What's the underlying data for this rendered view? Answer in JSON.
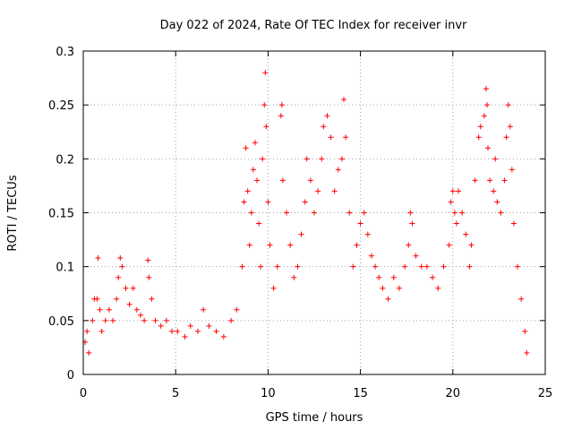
{
  "chart_data": {
    "type": "scatter",
    "title": "Day 022 of 2024, Rate Of TEC Index for receiver invr",
    "xlabel": "GPS time / hours",
    "ylabel": "ROTI / TECUs",
    "xlim": [
      0,
      25
    ],
    "ylim": [
      0,
      0.3
    ],
    "xticks": [
      "0",
      "5",
      "10",
      "15",
      "20",
      "25"
    ],
    "yticks": [
      "0",
      "0.05",
      "0.1",
      "0.15",
      "0.2",
      "0.25",
      "0.3"
    ],
    "grid": true,
    "marker": "plus",
    "color": "#ff0000",
    "series": [
      {
        "name": "ROTI",
        "points": [
          [
            0.1,
            0.03
          ],
          [
            0.2,
            0.04
          ],
          [
            0.3,
            0.02
          ],
          [
            0.5,
            0.05
          ],
          [
            0.6,
            0.07
          ],
          [
            0.75,
            0.07
          ],
          [
            0.8,
            0.108
          ],
          [
            0.9,
            0.06
          ],
          [
            1.0,
            0.04
          ],
          [
            1.2,
            0.05
          ],
          [
            1.4,
            0.06
          ],
          [
            1.6,
            0.05
          ],
          [
            1.8,
            0.07
          ],
          [
            1.9,
            0.09
          ],
          [
            2.0,
            0.108
          ],
          [
            2.1,
            0.1
          ],
          [
            2.3,
            0.08
          ],
          [
            2.5,
            0.065
          ],
          [
            2.7,
            0.08
          ],
          [
            2.9,
            0.06
          ],
          [
            3.1,
            0.055
          ],
          [
            3.3,
            0.05
          ],
          [
            3.5,
            0.106
          ],
          [
            3.55,
            0.09
          ],
          [
            3.7,
            0.07
          ],
          [
            3.9,
            0.05
          ],
          [
            4.2,
            0.045
          ],
          [
            4.5,
            0.05
          ],
          [
            4.8,
            0.04
          ],
          [
            5.1,
            0.04
          ],
          [
            5.5,
            0.035
          ],
          [
            5.8,
            0.045
          ],
          [
            6.2,
            0.04
          ],
          [
            6.5,
            0.06
          ],
          [
            6.8,
            0.045
          ],
          [
            7.2,
            0.04
          ],
          [
            7.6,
            0.035
          ],
          [
            8.0,
            0.05
          ],
          [
            8.3,
            0.06
          ],
          [
            8.6,
            0.1
          ],
          [
            8.7,
            0.16
          ],
          [
            8.8,
            0.21
          ],
          [
            8.9,
            0.17
          ],
          [
            9.0,
            0.12
          ],
          [
            9.1,
            0.15
          ],
          [
            9.2,
            0.19
          ],
          [
            9.3,
            0.215
          ],
          [
            9.4,
            0.18
          ],
          [
            9.5,
            0.14
          ],
          [
            9.6,
            0.1
          ],
          [
            9.7,
            0.2
          ],
          [
            9.8,
            0.25
          ],
          [
            9.85,
            0.28
          ],
          [
            9.9,
            0.23
          ],
          [
            10.0,
            0.16
          ],
          [
            10.1,
            0.12
          ],
          [
            10.3,
            0.08
          ],
          [
            10.5,
            0.1
          ],
          [
            10.7,
            0.24
          ],
          [
            10.75,
            0.25
          ],
          [
            10.8,
            0.18
          ],
          [
            11.0,
            0.15
          ],
          [
            11.2,
            0.12
          ],
          [
            11.4,
            0.09
          ],
          [
            11.6,
            0.1
          ],
          [
            11.8,
            0.13
          ],
          [
            12.0,
            0.16
          ],
          [
            12.1,
            0.2
          ],
          [
            12.3,
            0.18
          ],
          [
            12.5,
            0.15
          ],
          [
            12.7,
            0.17
          ],
          [
            12.9,
            0.2
          ],
          [
            13.0,
            0.23
          ],
          [
            13.2,
            0.24
          ],
          [
            13.4,
            0.22
          ],
          [
            13.6,
            0.17
          ],
          [
            13.8,
            0.19
          ],
          [
            14.0,
            0.2
          ],
          [
            14.1,
            0.255
          ],
          [
            14.2,
            0.22
          ],
          [
            14.4,
            0.15
          ],
          [
            14.6,
            0.1
          ],
          [
            14.8,
            0.12
          ],
          [
            15.0,
            0.14
          ],
          [
            15.2,
            0.15
          ],
          [
            15.4,
            0.13
          ],
          [
            15.6,
            0.11
          ],
          [
            15.8,
            0.1
          ],
          [
            16.0,
            0.09
          ],
          [
            16.2,
            0.08
          ],
          [
            16.5,
            0.07
          ],
          [
            16.8,
            0.09
          ],
          [
            17.1,
            0.08
          ],
          [
            17.4,
            0.1
          ],
          [
            17.6,
            0.12
          ],
          [
            17.7,
            0.15
          ],
          [
            17.8,
            0.14
          ],
          [
            18.0,
            0.11
          ],
          [
            18.3,
            0.1
          ],
          [
            18.6,
            0.1
          ],
          [
            18.9,
            0.09
          ],
          [
            19.2,
            0.08
          ],
          [
            19.5,
            0.1
          ],
          [
            19.8,
            0.12
          ],
          [
            19.9,
            0.16
          ],
          [
            20.0,
            0.17
          ],
          [
            20.1,
            0.15
          ],
          [
            20.2,
            0.14
          ],
          [
            20.3,
            0.17
          ],
          [
            20.5,
            0.15
          ],
          [
            20.7,
            0.13
          ],
          [
            20.9,
            0.1
          ],
          [
            21.0,
            0.12
          ],
          [
            21.2,
            0.18
          ],
          [
            21.4,
            0.22
          ],
          [
            21.5,
            0.23
          ],
          [
            21.7,
            0.24
          ],
          [
            21.8,
            0.265
          ],
          [
            21.85,
            0.25
          ],
          [
            21.9,
            0.21
          ],
          [
            22.0,
            0.18
          ],
          [
            22.2,
            0.17
          ],
          [
            22.3,
            0.2
          ],
          [
            22.4,
            0.16
          ],
          [
            22.6,
            0.15
          ],
          [
            22.8,
            0.18
          ],
          [
            22.9,
            0.22
          ],
          [
            23.0,
            0.25
          ],
          [
            23.1,
            0.23
          ],
          [
            23.2,
            0.19
          ],
          [
            23.3,
            0.14
          ],
          [
            23.5,
            0.1
          ],
          [
            23.7,
            0.07
          ],
          [
            23.9,
            0.04
          ],
          [
            24.0,
            0.02
          ]
        ]
      }
    ]
  }
}
